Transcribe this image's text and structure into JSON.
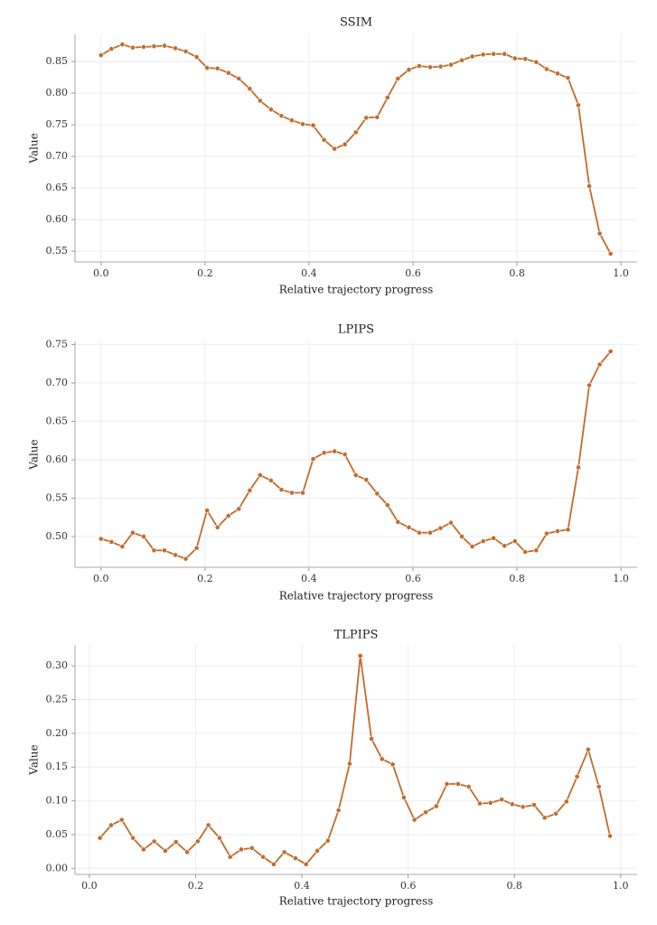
{
  "chart_data": [
    {
      "type": "line",
      "title": "SSIM",
      "xlabel": "Relative trajectory progress",
      "ylabel": "Value",
      "color": "#c26b2e",
      "grid": true,
      "x": [
        0,
        0.02,
        0.041,
        0.061,
        0.082,
        0.102,
        0.122,
        0.143,
        0.163,
        0.184,
        0.204,
        0.224,
        0.245,
        0.265,
        0.286,
        0.306,
        0.327,
        0.347,
        0.367,
        0.388,
        0.408,
        0.429,
        0.449,
        0.469,
        0.49,
        0.51,
        0.531,
        0.551,
        0.571,
        0.592,
        0.612,
        0.633,
        0.653,
        0.673,
        0.694,
        0.714,
        0.735,
        0.755,
        0.776,
        0.796,
        0.816,
        0.837,
        0.857,
        0.878,
        0.898,
        0.918,
        0.939,
        0.959,
        0.98
      ],
      "values": [
        0.86,
        0.87,
        0.877,
        0.872,
        0.873,
        0.874,
        0.875,
        0.871,
        0.866,
        0.857,
        0.84,
        0.839,
        0.832,
        0.823,
        0.807,
        0.788,
        0.774,
        0.764,
        0.757,
        0.751,
        0.749,
        0.726,
        0.712,
        0.719,
        0.738,
        0.761,
        0.762,
        0.793,
        0.823,
        0.837,
        0.843,
        0.841,
        0.842,
        0.845,
        0.852,
        0.858,
        0.861,
        0.862,
        0.862,
        0.855,
        0.854,
        0.849,
        0.838,
        0.831,
        0.824,
        0.781,
        0.653,
        0.578,
        0.546
      ],
      "xlim": [
        -0.05,
        1.031
      ],
      "xticks": [
        {
          "value": 0,
          "label": "0.0"
        },
        0.2,
        0.4,
        0.6,
        0.8,
        {
          "value": 1,
          "label": "1.0"
        }
      ],
      "ylim": [
        0.533,
        0.893
      ],
      "yticks": [
        0.55,
        {
          "value": 0.6,
          "label": "0.60"
        },
        0.65,
        {
          "value": 0.7,
          "label": "0.70"
        },
        0.75,
        {
          "value": 0.8,
          "label": "0.80"
        },
        0.85
      ]
    },
    {
      "type": "line",
      "title": "LPIPS",
      "xlabel": "Relative trajectory progress",
      "ylabel": "Value",
      "color": "#c26b2e",
      "grid": true,
      "x": [
        0,
        0.02,
        0.041,
        0.061,
        0.082,
        0.102,
        0.122,
        0.143,
        0.163,
        0.184,
        0.204,
        0.224,
        0.245,
        0.265,
        0.286,
        0.306,
        0.327,
        0.347,
        0.367,
        0.388,
        0.408,
        0.429,
        0.449,
        0.469,
        0.49,
        0.51,
        0.531,
        0.551,
        0.571,
        0.592,
        0.612,
        0.633,
        0.653,
        0.673,
        0.694,
        0.714,
        0.735,
        0.755,
        0.776,
        0.796,
        0.816,
        0.837,
        0.857,
        0.878,
        0.898,
        0.918,
        0.939,
        0.959,
        0.98
      ],
      "values": [
        0.497,
        0.493,
        0.487,
        0.505,
        0.5,
        0.482,
        0.482,
        0.476,
        0.471,
        0.485,
        0.534,
        0.512,
        0.527,
        0.536,
        0.56,
        0.58,
        0.573,
        0.561,
        0.557,
        0.557,
        0.601,
        0.609,
        0.611,
        0.607,
        0.58,
        0.574,
        0.556,
        0.541,
        0.519,
        0.512,
        0.505,
        0.505,
        0.511,
        0.518,
        0.5,
        0.487,
        0.494,
        0.498,
        0.488,
        0.494,
        0.48,
        0.482,
        0.504,
        0.507,
        0.509,
        0.59,
        0.697,
        0.724,
        0.741
      ],
      "xlim": [
        -0.05,
        1.031
      ],
      "xticks": [
        {
          "value": 0,
          "label": "0.0"
        },
        0.2,
        0.4,
        0.6,
        0.8,
        {
          "value": 1,
          "label": "1.0"
        }
      ],
      "ylim": [
        0.46,
        0.754
      ],
      "yticks": [
        {
          "value": 0.5,
          "label": "0.50"
        },
        0.55,
        {
          "value": 0.6,
          "label": "0.60"
        },
        0.65,
        {
          "value": 0.7,
          "label": "0.70"
        },
        0.75
      ]
    },
    {
      "type": "line",
      "title": "TLPIPS",
      "xlabel": "Relative trajectory progress",
      "ylabel": "Value",
      "color": "#c26b2e",
      "grid": true,
      "x": [
        0.02,
        0.041,
        0.061,
        0.082,
        0.102,
        0.122,
        0.143,
        0.163,
        0.184,
        0.204,
        0.224,
        0.245,
        0.265,
        0.286,
        0.306,
        0.327,
        0.347,
        0.367,
        0.388,
        0.408,
        0.429,
        0.449,
        0.469,
        0.49,
        0.51,
        0.531,
        0.551,
        0.571,
        0.592,
        0.612,
        0.633,
        0.653,
        0.673,
        0.694,
        0.714,
        0.735,
        0.755,
        0.776,
        0.796,
        0.816,
        0.837,
        0.857,
        0.878,
        0.898,
        0.918,
        0.939,
        0.959,
        0.98
      ],
      "values": [
        0.045,
        0.064,
        0.072,
        0.045,
        0.028,
        0.04,
        0.026,
        0.039,
        0.024,
        0.04,
        0.064,
        0.045,
        0.017,
        0.028,
        0.03,
        0.017,
        0.006,
        0.024,
        0.015,
        0.006,
        0.026,
        0.041,
        0.086,
        0.155,
        0.315,
        0.192,
        0.162,
        0.154,
        0.105,
        0.072,
        0.083,
        0.092,
        0.125,
        0.125,
        0.121,
        0.096,
        0.097,
        0.102,
        0.095,
        0.091,
        0.094,
        0.075,
        0.081,
        0.099,
        0.136,
        0.176,
        0.121,
        0.048
      ],
      "xlim": [
        -0.027,
        1.031
      ],
      "xticks": [
        {
          "value": 0,
          "label": "0.0"
        },
        0.2,
        0.4,
        0.6,
        0.8,
        {
          "value": 1,
          "label": "1.0"
        }
      ],
      "ylim": [
        -0.009,
        0.331
      ],
      "yticks": [
        {
          "value": 0,
          "label": "0.00"
        },
        0.05,
        {
          "value": 0.1,
          "label": "0.10"
        },
        0.15,
        {
          "value": 0.2,
          "label": "0.20"
        },
        0.25,
        {
          "value": 0.3,
          "label": "0.30"
        }
      ]
    }
  ]
}
